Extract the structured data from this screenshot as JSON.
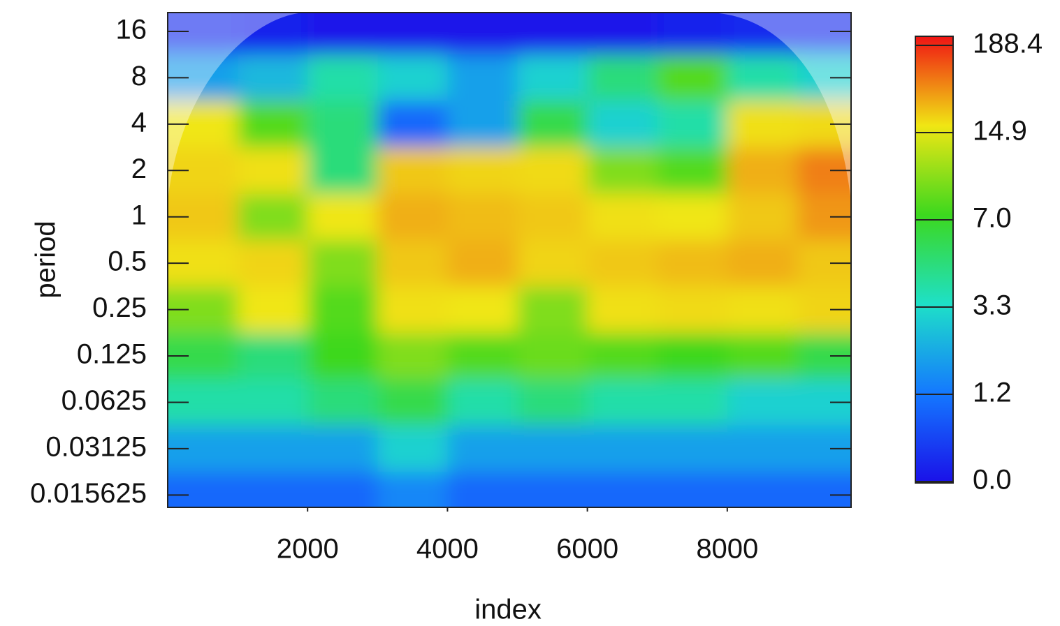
{
  "chart_data": {
    "type": "heatmap",
    "x_label": "index",
    "y_label": "period",
    "x": [
      500,
      1500,
      2500,
      3500,
      4500,
      5500,
      6500,
      7500,
      8500,
      9500
    ],
    "y": [
      16,
      8,
      4,
      2,
      1,
      0.5,
      0.25,
      0.125,
      0.0625,
      0.03125,
      0.015625
    ],
    "z": [
      [
        0.3,
        0.2,
        0.1,
        0.1,
        0.1,
        0.1,
        0.1,
        0.2,
        0.3,
        0.3
      ],
      [
        2,
        2.5,
        4,
        3,
        2,
        3,
        5,
        8,
        4,
        3
      ],
      [
        15,
        8,
        5,
        1,
        2,
        6,
        3,
        4,
        20,
        25
      ],
      [
        30,
        20,
        5,
        40,
        30,
        25,
        10,
        8,
        60,
        100
      ],
      [
        40,
        10,
        15,
        60,
        50,
        40,
        20,
        15,
        40,
        80
      ],
      [
        20,
        30,
        10,
        40,
        60,
        30,
        40,
        50,
        60,
        40
      ],
      [
        10,
        15,
        8,
        20,
        15,
        10,
        20,
        25,
        20,
        30
      ],
      [
        6,
        5,
        7,
        10,
        8,
        9,
        8,
        7,
        8,
        6
      ],
      [
        4,
        4,
        5,
        6,
        4,
        5,
        4,
        4,
        3,
        3
      ],
      [
        2,
        2,
        2,
        3,
        2,
        2,
        2,
        2,
        2,
        2
      ],
      [
        1,
        1,
        1,
        1.5,
        1,
        1,
        1,
        1,
        1,
        1
      ]
    ],
    "xlim": [
      0,
      9770
    ],
    "ylim": [
      0.013,
      21.2
    ],
    "xticks": [
      2000,
      4000,
      6000,
      8000
    ],
    "yticks": [
      0.015625,
      0.03125,
      0.0625,
      0.125,
      0.25,
      0.5,
      1,
      2,
      4,
      8,
      16
    ],
    "y_log_scale": true,
    "colorbar": {
      "ticks": [
        {
          "value": 0,
          "label": "0.0"
        },
        1.2,
        3.3,
        {
          "value": 7,
          "label": "7.0"
        },
        14.9,
        188.4
      ],
      "colors": [
        "#1a10e8",
        "#1478ff",
        "#1ee0c8",
        "#3cd81e",
        "#f0e614",
        "#f01414"
      ]
    }
  }
}
